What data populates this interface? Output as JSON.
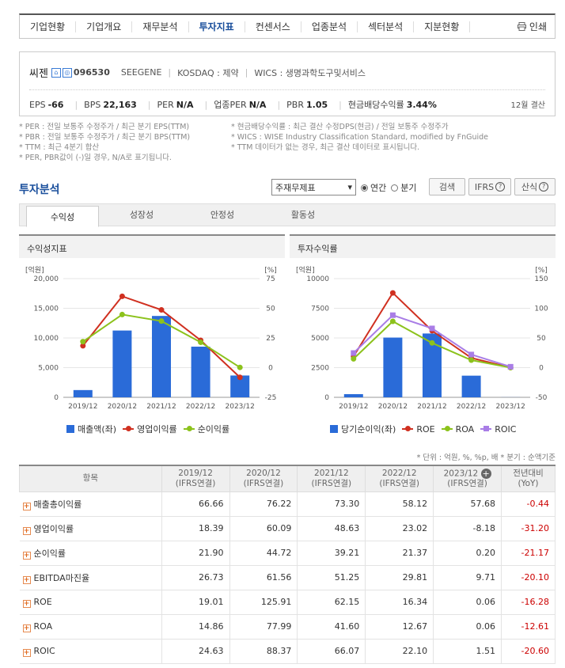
{
  "nav": {
    "items": [
      "기업현황",
      "기업개요",
      "재무분석",
      "투자지표",
      "컨센서스",
      "업종분석",
      "섹터분석",
      "지분현황"
    ],
    "active_index": 3,
    "print_label": "인쇄"
  },
  "company": {
    "name": "씨젠",
    "code": "096530",
    "eng_name": "SEEGENE",
    "market": "KOSDAQ : 제약",
    "wics": "WICS : 생명과학도구및서비스",
    "metrics": [
      {
        "label": "EPS",
        "value": "-66"
      },
      {
        "label": "BPS",
        "value": "22,163"
      },
      {
        "label": "PER",
        "value": "N/A"
      },
      {
        "label": "업종PER",
        "value": "N/A"
      },
      {
        "label": "PBR",
        "value": "1.05"
      },
      {
        "label": "현금배당수익률",
        "value": "3.44%"
      }
    ],
    "settlement": "12월 결산"
  },
  "notes": {
    "left": [
      "* PER : 전일 보통주 수정주가 / 최근 분기 EPS(TTM)",
      "* PBR : 전일 보통주 수정주가 / 최근 분기 BPS(TTM)",
      "* TTM : 최근 4분기 합산",
      "* PER, PBR값이 (-)일 경우, N/A로 표기됩니다."
    ],
    "right": [
      "* 현금배당수익률 : 최근 결산 수정DPS(현금) / 전일 보통주 수정주가",
      "* WICS : WISE Industry Classification Standard, modified by FnGuide",
      "* TTM 데이터가 없는 경우, 최근 결산 데이터로 표시됩니다."
    ]
  },
  "section": {
    "title": "투자분석",
    "select_value": "주재무제표",
    "radio_annual": "연간",
    "radio_quarter": "분기",
    "search_button": "검색",
    "ifrs_button": "IFRS",
    "formula_button": "산식"
  },
  "tabs": [
    "수익성",
    "성장성",
    "안정성",
    "활동성"
  ],
  "panels": {
    "left_title": "수익성지표",
    "right_title": "투자수익률"
  },
  "colors": {
    "bar": "#2a6bd8",
    "red": "#d03020",
    "green": "#8cc21c",
    "purple": "#a97de6"
  },
  "chart_data": [
    {
      "type": "bar",
      "title": "수익성지표",
      "categories": [
        "2019/12",
        "2020/12",
        "2021/12",
        "2022/12",
        "2023/12"
      ],
      "left_unit": "[억원]",
      "right_unit": "[%]",
      "left_ticks": [
        "20,000",
        "15,000",
        "10,000",
        "5,000",
        "0"
      ],
      "right_ticks": [
        "75",
        "50",
        "25",
        "0",
        "-25"
      ],
      "ylim_left": [
        0,
        20000
      ],
      "ylim_right": [
        -25,
        75
      ],
      "series": [
        {
          "name": "매출액(좌)",
          "type": "bar",
          "axis": "left",
          "values": [
            1220,
            11252,
            13708,
            8536,
            3674
          ]
        },
        {
          "name": "영업이익률",
          "type": "line",
          "axis": "right",
          "values": [
            18.39,
            60.09,
            48.63,
            23.02,
            -8.18
          ]
        },
        {
          "name": "순이익률",
          "type": "line",
          "axis": "right",
          "values": [
            21.9,
            44.72,
            39.21,
            21.37,
            0.2
          ]
        }
      ]
    },
    {
      "type": "bar",
      "title": "투자수익률",
      "categories": [
        "2019/12",
        "2020/12",
        "2021/12",
        "2022/12",
        "2023/12"
      ],
      "left_unit": "[억원]",
      "right_unit": "[%]",
      "left_ticks": [
        "10000",
        "7500",
        "5000",
        "2500",
        "0"
      ],
      "right_ticks": [
        "150",
        "100",
        "50",
        "0",
        "-50"
      ],
      "ylim_left": [
        0,
        10000
      ],
      "ylim_right": [
        -50,
        150
      ],
      "series": [
        {
          "name": "당기순이익(좌)",
          "type": "bar",
          "axis": "left",
          "values": [
            267,
            5032,
            5375,
            1824,
            7
          ]
        },
        {
          "name": "ROE",
          "type": "line",
          "axis": "right",
          "values": [
            19.01,
            125.91,
            62.15,
            16.34,
            0.06
          ]
        },
        {
          "name": "ROA",
          "type": "line",
          "axis": "right",
          "values": [
            14.86,
            77.99,
            41.6,
            12.67,
            0.06
          ]
        },
        {
          "name": "ROIC",
          "type": "line",
          "axis": "right",
          "values": [
            24.63,
            88.37,
            66.07,
            22.1,
            1.51
          ]
        }
      ]
    }
  ],
  "table": {
    "units_note": "* 단위 : 억원, %, %p, 배      * 분기 : 순액기준",
    "header_item": "항목",
    "columns": [
      {
        "year": "2019/12",
        "sub": "(IFRS연결)"
      },
      {
        "year": "2020/12",
        "sub": "(IFRS연결)"
      },
      {
        "year": "2021/12",
        "sub": "(IFRS연결)"
      },
      {
        "year": "2022/12",
        "sub": "(IFRS연결)"
      },
      {
        "year": "2023/12",
        "sub": "(IFRS연결)"
      }
    ],
    "yoy_header": "전년대비",
    "yoy_sub": "(YoY)",
    "rows": [
      {
        "label": "매출총이익률",
        "values": [
          "66.66",
          "76.22",
          "73.30",
          "58.12",
          "57.68"
        ],
        "yoy": "-0.44"
      },
      {
        "label": "영업이익률",
        "values": [
          "18.39",
          "60.09",
          "48.63",
          "23.02",
          "-8.18"
        ],
        "yoy": "-31.20"
      },
      {
        "label": "순이익률",
        "values": [
          "21.90",
          "44.72",
          "39.21",
          "21.37",
          "0.20"
        ],
        "yoy": "-21.17"
      },
      {
        "label": "EBITDA마진율",
        "values": [
          "26.73",
          "61.56",
          "51.25",
          "29.81",
          "9.71"
        ],
        "yoy": "-20.10"
      },
      {
        "label": "ROE",
        "values": [
          "19.01",
          "125.91",
          "62.15",
          "16.34",
          "0.06"
        ],
        "yoy": "-16.28"
      },
      {
        "label": "ROA",
        "values": [
          "14.86",
          "77.99",
          "41.60",
          "12.67",
          "0.06"
        ],
        "yoy": "-12.61"
      },
      {
        "label": "ROIC",
        "values": [
          "24.63",
          "88.37",
          "66.07",
          "22.10",
          "1.51"
        ],
        "yoy": "-20.60"
      }
    ]
  }
}
